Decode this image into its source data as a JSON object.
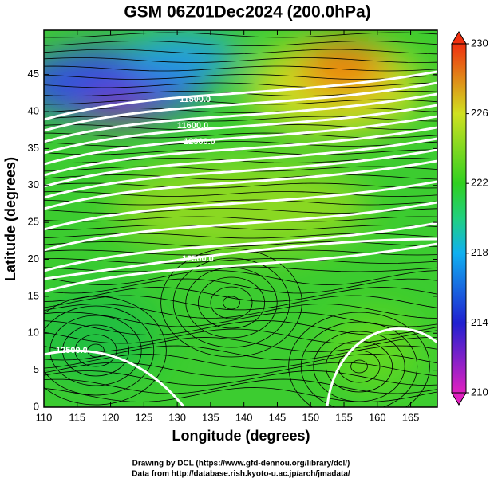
{
  "title": "GSM 06Z01Dec2024 (200.0hPa)",
  "map": {
    "xlabel": "Longitude (degrees)",
    "ylabel": "Latitude  (degrees)",
    "xlim": [
      110,
      169
    ],
    "xticks": [
      110,
      115,
      120,
      125,
      130,
      135,
      140,
      145,
      150,
      155,
      160,
      165
    ],
    "ylim": [
      0,
      51
    ],
    "yticks": [
      0,
      5,
      10,
      15,
      20,
      25,
      30,
      35,
      40,
      45
    ],
    "contour_labels": [
      "11500.0",
      "11600.0",
      "12300.0",
      "12500.0",
      "12500.0"
    ]
  },
  "colorbar": {
    "lim": [
      210,
      230
    ],
    "ticks": [
      210,
      214,
      218,
      222,
      226,
      230
    ]
  },
  "credits": [
    "Drawing by DCL (https://www.gfd-dennou.org/library/dcl/)",
    "Data from http://database.rish.kyoto-u.ac.jp/arch/jmadata/"
  ]
}
